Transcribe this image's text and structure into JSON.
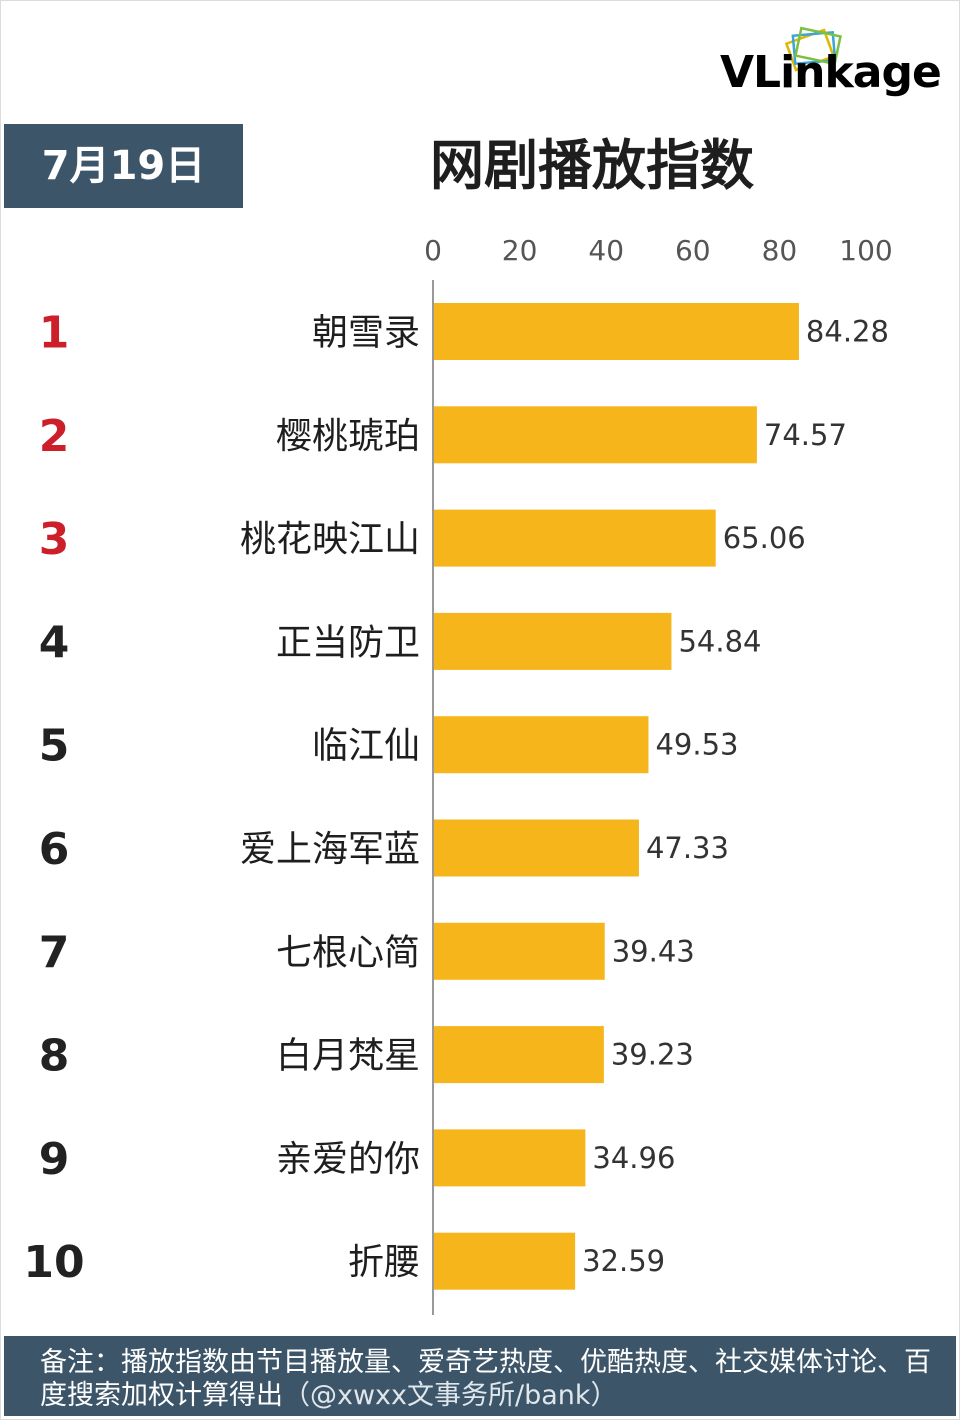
{
  "header": {
    "date": "7月19日",
    "title": "网剧播放指数",
    "brand": "VLinkage"
  },
  "footer": {
    "note": "备注：播放指数由节目播放量、爱奇艺热度、优酷热度、社交媒体讨论、百度搜索加权计算得出",
    "watermark": "（@xwxx文事务所/bank）"
  },
  "colors": {
    "bar": "#f5b51b",
    "rank_top": "#cc1f2a",
    "rank_other": "#222222",
    "header_box": "#3d5568",
    "axis": "#999999"
  },
  "chart_data": {
    "type": "bar",
    "orientation": "horizontal",
    "title": "网剧播放指数",
    "xlim": [
      0,
      100
    ],
    "x_ticks": [
      "0",
      "20",
      "40",
      "60",
      "80",
      "100"
    ],
    "ranks": [
      "1",
      "2",
      "3",
      "4",
      "5",
      "6",
      "7",
      "8",
      "9",
      "10"
    ],
    "categories": [
      "朝雪录",
      "樱桃琥珀",
      "桃花映江山",
      "正当防卫",
      "临江仙",
      "爱上海军蓝",
      "七根心简",
      "白月梵星",
      "亲爱的你",
      "折腰"
    ],
    "values": [
      84.28,
      74.57,
      65.06,
      54.84,
      49.53,
      47.33,
      39.43,
      39.23,
      34.96,
      32.59
    ],
    "value_labels": [
      "84.28",
      "74.57",
      "65.06",
      "54.84",
      "49.53",
      "47.33",
      "39.43",
      "39.23",
      "34.96",
      "32.59"
    ],
    "grid": false,
    "legend": "none"
  }
}
